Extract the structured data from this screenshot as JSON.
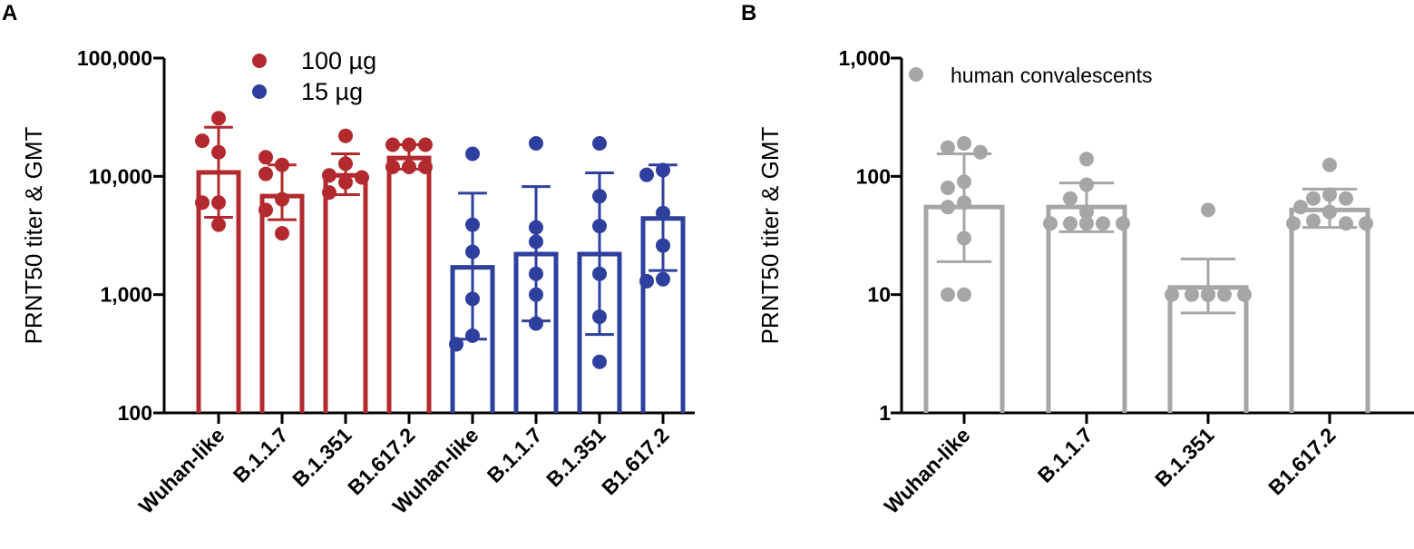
{
  "chart_data": [
    {
      "panel": "A",
      "type": "bar",
      "yscale": "log",
      "ylabel": "PRNT50 titer & GMT",
      "ylim": [
        100,
        100000
      ],
      "yticks": [
        100,
        1000,
        10000,
        100000
      ],
      "ytick_labels": [
        "100",
        "1,000",
        "10,000",
        "100,000"
      ],
      "categories": [
        "Wuhan-like",
        "B.1.1.7",
        "B.1.351",
        "B1.617.2",
        "Wuhan-like",
        "B.1.1.7",
        "B.1.351",
        "B1.617.2"
      ],
      "legend": [
        {
          "label": "100 µg",
          "color": "#b22a2e"
        },
        {
          "label": "15 µg",
          "color": "#2e3f9e"
        }
      ],
      "series": [
        {
          "name": "100 µg",
          "color": "#b22a2e",
          "groups": [
            {
              "category": "Wuhan-like",
              "gmt": 10800,
              "err_low": 4500,
              "err_high": 26000,
              "points": [
                31000,
                16000,
                20000,
                6000,
                6000,
                3900
              ]
            },
            {
              "category": "B.1.1.7",
              "gmt": 6800,
              "err_low": 4300,
              "err_high": 12500,
              "points": [
                12500,
                14500,
                10500,
                6400,
                5200,
                3300
              ]
            },
            {
              "category": "B.1.351",
              "gmt": 10200,
              "err_low": 7000,
              "err_high": 15500,
              "points": [
                22000,
                12800,
                10200,
                9800,
                8900,
                7300
              ]
            },
            {
              "category": "B1.617.2",
              "gmt": 14300,
              "err_low": 11500,
              "err_high": 18500,
              "points": [
                18500,
                18500,
                18500,
                12000,
                12000,
                12000
              ]
            }
          ]
        },
        {
          "name": "15 µg",
          "color": "#2e3f9e",
          "groups": [
            {
              "category": "Wuhan-like",
              "gmt": 1700,
              "err_low": 420,
              "err_high": 7200,
              "points": [
                15500,
                3900,
                2300,
                920,
                450,
                380
              ]
            },
            {
              "category": "B.1.1.7",
              "gmt": 2200,
              "err_low": 600,
              "err_high": 8200,
              "points": [
                19000,
                3700,
                2800,
                1500,
                1000,
                570
              ]
            },
            {
              "category": "B.1.351",
              "gmt": 2200,
              "err_low": 460,
              "err_high": 10700,
              "points": [
                19000,
                6800,
                3800,
                1500,
                650,
                270
              ]
            },
            {
              "category": "B1.617.2",
              "gmt": 4400,
              "err_low": 1600,
              "err_high": 12500,
              "points": [
                11300,
                10300,
                4900,
                2600,
                1350,
                1300
              ]
            }
          ]
        }
      ]
    },
    {
      "panel": "B",
      "type": "bar",
      "yscale": "log",
      "ylabel": "PRNT50 titer & GMT",
      "ylim": [
        1,
        1000
      ],
      "yticks": [
        1,
        10,
        100,
        1000
      ],
      "ytick_labels": [
        "1",
        "10",
        "100",
        "1,000"
      ],
      "categories": [
        "Wuhan-like",
        "B.1.1.7",
        "B.1.351",
        "B1.617.2"
      ],
      "legend": [
        {
          "label": "human convalescents",
          "color": "#a6a6a8"
        }
      ],
      "series": [
        {
          "name": "human convalescents",
          "color": "#a6a6a8",
          "groups": [
            {
              "category": "Wuhan-like",
              "gmt": 55,
              "err_low": 19,
              "err_high": 155,
              "points": [
                190,
                175,
                160,
                90,
                80,
                60,
                55,
                30,
                10,
                10
              ]
            },
            {
              "category": "B.1.1.7",
              "gmt": 55,
              "err_low": 34,
              "err_high": 88,
              "points": [
                140,
                85,
                65,
                50,
                40,
                40,
                40,
                40,
                40,
                40
              ]
            },
            {
              "category": "B.1.351",
              "gmt": 11.5,
              "err_low": 7,
              "err_high": 20,
              "points": [
                52,
                10,
                10,
                10,
                10,
                10,
                10,
                10,
                10,
                10
              ]
            },
            {
              "category": "B1.617.2",
              "gmt": 52,
              "err_low": 37,
              "err_high": 78,
              "points": [
                125,
                70,
                65,
                65,
                55,
                50,
                42,
                40,
                40,
                40
              ]
            }
          ]
        }
      ]
    }
  ],
  "panel_labels": {
    "a": "A",
    "b": "B"
  }
}
